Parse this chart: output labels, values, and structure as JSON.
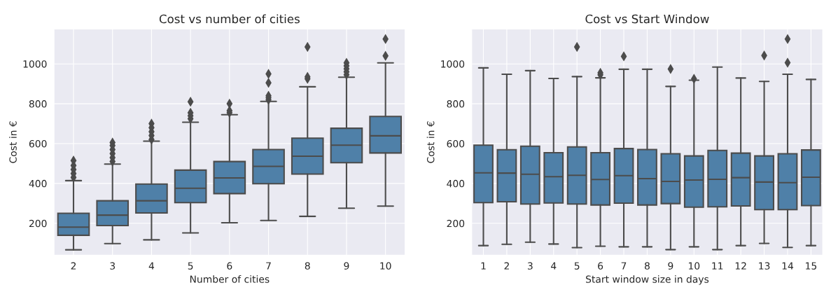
{
  "chart_data": [
    {
      "type": "box",
      "title": "Cost vs number of cities",
      "xlabel": "Number of cities",
      "ylabel": "Cost in €",
      "color": "#4f80a8",
      "grid": true,
      "marker": "diamond",
      "ylim": [
        40,
        1175
      ],
      "yticks": [
        200,
        400,
        600,
        800,
        1000
      ],
      "categories": [
        "2",
        "3",
        "4",
        "5",
        "6",
        "7",
        "8",
        "9",
        "10"
      ],
      "boxes": [
        {
          "low": 67,
          "q1": 140,
          "median": 181,
          "q3": 250,
          "high": 414,
          "outliers": [
            430,
            450,
            470,
            490,
            515
          ]
        },
        {
          "low": 98,
          "q1": 189,
          "median": 241,
          "q3": 313,
          "high": 497,
          "outliers": [
            510,
            530,
            550,
            570,
            590,
            605
          ]
        },
        {
          "low": 117,
          "q1": 252,
          "median": 313,
          "q3": 397,
          "high": 612,
          "outliers": [
            620,
            640,
            660,
            680,
            700
          ]
        },
        {
          "low": 152,
          "q1": 304,
          "median": 376,
          "q3": 467,
          "high": 707,
          "outliers": [
            725,
            740,
            755,
            810
          ]
        },
        {
          "low": 203,
          "q1": 349,
          "median": 428,
          "q3": 510,
          "high": 745,
          "outliers": [
            755,
            765,
            800
          ]
        },
        {
          "low": 214,
          "q1": 399,
          "median": 486,
          "q3": 570,
          "high": 812,
          "outliers": [
            820,
            830,
            840,
            905,
            950
          ]
        },
        {
          "low": 235,
          "q1": 447,
          "median": 537,
          "q3": 627,
          "high": 885,
          "outliers": [
            925,
            935,
            1085
          ]
        },
        {
          "low": 276,
          "q1": 504,
          "median": 592,
          "q3": 677,
          "high": 933,
          "outliers": [
            945,
            960,
            975,
            990,
            1005
          ]
        },
        {
          "low": 286,
          "q1": 553,
          "median": 639,
          "q3": 736,
          "high": 1005,
          "outliers": [
            1040,
            1125
          ]
        }
      ]
    },
    {
      "type": "box",
      "title": "Cost vs Start Window",
      "xlabel": "Start window size in days",
      "ylabel": "Cost in €",
      "color": "#4f80a8",
      "grid": true,
      "marker": "diamond",
      "ylim": [
        40,
        1175
      ],
      "yticks": [
        200,
        400,
        600,
        800,
        1000
      ],
      "categories": [
        "1",
        "2",
        "3",
        "4",
        "5",
        "6",
        "7",
        "8",
        "9",
        "10",
        "11",
        "12",
        "13",
        "14",
        "15"
      ],
      "boxes": [
        {
          "low": 88,
          "q1": 304,
          "median": 453,
          "q3": 592,
          "high": 980
        },
        {
          "low": 95,
          "q1": 308,
          "median": 452,
          "q3": 569,
          "high": 948
        },
        {
          "low": 105,
          "q1": 297,
          "median": 446,
          "q3": 587,
          "high": 966
        },
        {
          "low": 96,
          "q1": 302,
          "median": 434,
          "q3": 554,
          "high": 927
        },
        {
          "low": 78,
          "q1": 297,
          "median": 441,
          "q3": 583,
          "high": 936,
          "outliers": [
            1085
          ]
        },
        {
          "low": 85,
          "q1": 292,
          "median": 420,
          "q3": 554,
          "high": 930,
          "outliers": [
            945,
            955
          ]
        },
        {
          "low": 82,
          "q1": 301,
          "median": 439,
          "q3": 575,
          "high": 973,
          "outliers": [
            1038
          ]
        },
        {
          "low": 82,
          "q1": 292,
          "median": 424,
          "q3": 570,
          "high": 973
        },
        {
          "low": 68,
          "q1": 299,
          "median": 410,
          "q3": 549,
          "high": 887,
          "outliers": [
            974
          ]
        },
        {
          "low": 82,
          "q1": 281,
          "median": 417,
          "q3": 538,
          "high": 918,
          "outliers": [
            925
          ]
        },
        {
          "low": 68,
          "q1": 283,
          "median": 421,
          "q3": 566,
          "high": 984
        },
        {
          "low": 88,
          "q1": 287,
          "median": 429,
          "q3": 552,
          "high": 929
        },
        {
          "low": 99,
          "q1": 269,
          "median": 407,
          "q3": 538,
          "high": 912,
          "outliers": [
            1042
          ]
        },
        {
          "low": 79,
          "q1": 269,
          "median": 404,
          "q3": 549,
          "high": 948,
          "outliers": [
            1006,
            1125
          ]
        },
        {
          "low": 88,
          "q1": 289,
          "median": 431,
          "q3": 568,
          "high": 922
        }
      ]
    }
  ]
}
